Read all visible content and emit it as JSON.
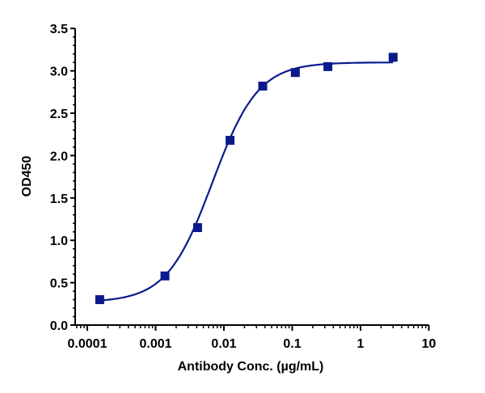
{
  "chart_data": {
    "type": "scatter",
    "title": "",
    "xlabel": "Antibody Conc. (µg/mL)",
    "ylabel": "OD450",
    "x_scale": "log",
    "xlim": [
      0.0001,
      10
    ],
    "ylim": [
      0,
      3.5
    ],
    "x_ticks": [
      "0.0001",
      "0.001",
      "0.01",
      "0.1",
      "1",
      "10"
    ],
    "x_tick_values": [
      0.0001,
      0.001,
      0.01,
      0.1,
      1,
      10
    ],
    "y_ticks": [
      "0.0",
      "0.5",
      "1.0",
      "1.5",
      "2.0",
      "2.5",
      "3.0",
      "3.5"
    ],
    "y_tick_values": [
      0,
      0.5,
      1,
      1.5,
      2,
      2.5,
      3,
      3.5
    ],
    "grid": false,
    "marker": "square",
    "fit_line": "sigmoidal",
    "color": "#0a1a8c",
    "series": [
      {
        "x": [
          0.000152,
          0.00137,
          0.00412,
          0.0123,
          0.037,
          0.111,
          0.333,
          3
        ],
        "y": [
          0.3,
          0.58,
          1.15,
          2.18,
          2.82,
          2.98,
          3.05,
          3.16
        ]
      }
    ]
  }
}
